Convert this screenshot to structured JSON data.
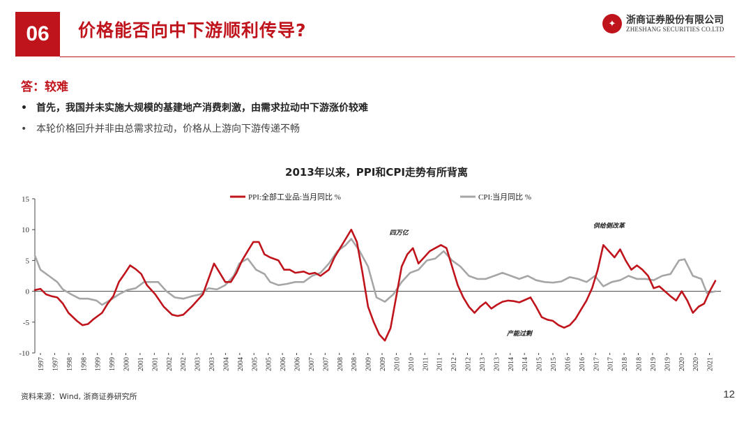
{
  "header": {
    "section_number": "06",
    "title": "价格能否向中下游顺利传导?",
    "logo_cn": "浙商证券股份有限公司",
    "logo_en": "ZHESHANG SECURITIES CO.LTD"
  },
  "body": {
    "answer": "答：较难",
    "bullets": [
      "首先，我国并未实施大规模的基建地产消费刺激，由需求拉动中下游涨价较难",
      "本轮价格回升并非由总需求拉动，价格从上游向下游传递不畅"
    ]
  },
  "footer": {
    "source": "资料来源：Wind, 浙商证券研究所",
    "page": "12"
  },
  "colors": {
    "brand_red": "#c0141c",
    "ppi_line": "#c0141c",
    "cpi_line": "#a6a6a6"
  },
  "chart_data": {
    "type": "line",
    "title": "2013年以来，PPI和CPI走势有所背离",
    "xlabel": "",
    "ylabel": "",
    "xlim": [
      1997.0,
      2021.5
    ],
    "ylim": [
      -10,
      15
    ],
    "y_ticks": [
      -10,
      -5,
      0,
      5,
      10,
      15
    ],
    "x_tick_labels": [
      "1997",
      "1997",
      "1998",
      "1998",
      "1999",
      "1999",
      "2000",
      "2001",
      "2001",
      "2002",
      "2002",
      "2003",
      "2003",
      "2004",
      "2004",
      "2005",
      "2005",
      "2006",
      "2006",
      "2007",
      "2007",
      "2008",
      "2008",
      "2009",
      "2009",
      "2010",
      "2010",
      "2011",
      "2011",
      "2012",
      "2012",
      "2013",
      "2013",
      "2014",
      "2014",
      "2015",
      "2015",
      "2016",
      "2016",
      "2017",
      "2017",
      "2018",
      "2018",
      "2019",
      "2019",
      "2020",
      "2020",
      "2021"
    ],
    "legend_position": "top",
    "grid": false,
    "annotations": [
      {
        "text": "四万亿",
        "x": 2010.0,
        "y": 9.2
      },
      {
        "text": "供给侧改革",
        "x": 2017.5,
        "y": 10.3
      },
      {
        "text": "产能过剩",
        "x": 2014.3,
        "y": -7.2
      }
    ],
    "series": [
      {
        "name": "PPI:全部工业品:当月同比 %",
        "x": [
          1997.0,
          1997.2,
          1997.4,
          1997.6,
          1997.8,
          1998.0,
          1998.2,
          1998.5,
          1998.7,
          1998.9,
          1999.1,
          1999.4,
          1999.6,
          1999.8,
          2000.0,
          2000.2,
          2000.4,
          2000.6,
          2000.8,
          2001.0,
          2001.3,
          2001.6,
          2001.9,
          2002.1,
          2002.3,
          2002.6,
          2002.8,
          2003.0,
          2003.2,
          2003.4,
          2003.6,
          2003.8,
          2004.0,
          2004.2,
          2004.4,
          2004.6,
          2004.8,
          2005.0,
          2005.2,
          2005.4,
          2005.7,
          2005.9,
          2006.1,
          2006.3,
          2006.6,
          2006.8,
          2007.0,
          2007.2,
          2007.5,
          2007.7,
          2007.9,
          2008.1,
          2008.3,
          2008.5,
          2008.7,
          2008.9,
          2009.1,
          2009.3,
          2009.5,
          2009.7,
          2009.9,
          2010.1,
          2010.3,
          2010.5,
          2010.7,
          2010.9,
          2011.1,
          2011.3,
          2011.5,
          2011.7,
          2011.9,
          2012.1,
          2012.3,
          2012.5,
          2012.7,
          2012.9,
          2013.1,
          2013.3,
          2013.5,
          2013.7,
          2013.9,
          2014.1,
          2014.3,
          2014.5,
          2014.7,
          2014.9,
          2015.1,
          2015.3,
          2015.5,
          2015.7,
          2015.9,
          2016.1,
          2016.3,
          2016.5,
          2016.7,
          2016.9,
          2017.1,
          2017.3,
          2017.5,
          2017.7,
          2017.9,
          2018.1,
          2018.3,
          2018.5,
          2018.7,
          2018.9,
          2019.1,
          2019.3,
          2019.5,
          2019.7,
          2019.9,
          2020.1,
          2020.3,
          2020.5,
          2020.7,
          2020.9,
          2021.1,
          2021.3
        ],
        "values": [
          0.2,
          0.4,
          -0.5,
          -0.8,
          -1.0,
          -2.0,
          -3.5,
          -4.8,
          -5.5,
          -5.3,
          -4.5,
          -3.5,
          -2.0,
          -0.8,
          1.5,
          2.8,
          4.2,
          3.6,
          2.8,
          1.0,
          -0.5,
          -2.5,
          -3.8,
          -4.0,
          -3.8,
          -2.5,
          -1.5,
          -0.5,
          2.0,
          4.5,
          3.0,
          1.5,
          1.5,
          3.0,
          5.0,
          6.5,
          8.0,
          8.0,
          6.0,
          5.5,
          5.0,
          3.5,
          3.5,
          3.0,
          3.2,
          2.8,
          3.0,
          2.5,
          3.5,
          5.5,
          7.0,
          8.5,
          10.0,
          8.0,
          3.0,
          -2.5,
          -5.0,
          -7.0,
          -8.0,
          -6.0,
          -1.0,
          4.0,
          6.0,
          7.0,
          4.5,
          5.5,
          6.5,
          7.0,
          7.5,
          7.0,
          4.0,
          1.0,
          -1.0,
          -2.5,
          -3.5,
          -2.5,
          -1.8,
          -2.8,
          -2.2,
          -1.7,
          -1.5,
          -1.6,
          -1.8,
          -1.4,
          -1.0,
          -2.5,
          -4.2,
          -4.6,
          -4.8,
          -5.5,
          -5.9,
          -5.5,
          -4.5,
          -3.0,
          -1.5,
          0.5,
          3.5,
          7.5,
          6.5,
          5.5,
          6.8,
          5.0,
          3.5,
          4.2,
          3.5,
          2.5,
          0.5,
          0.8,
          0.0,
          -0.8,
          -1.5,
          0.0,
          -1.5,
          -3.5,
          -2.5,
          -2.0,
          0.0,
          1.7
        ]
      },
      {
        "name": "CPI:当月同比 %",
        "x": [
          1997.0,
          1997.2,
          1997.5,
          1997.8,
          1998.0,
          1998.3,
          1998.6,
          1998.9,
          1999.2,
          1999.4,
          1999.7,
          2000.0,
          2000.3,
          2000.6,
          2000.9,
          2001.1,
          2001.4,
          2001.7,
          2002.0,
          2002.3,
          2002.6,
          2002.9,
          2003.2,
          2003.5,
          2003.8,
          2004.1,
          2004.3,
          2004.6,
          2004.9,
          2005.2,
          2005.4,
          2005.7,
          2006.0,
          2006.3,
          2006.6,
          2006.9,
          2007.2,
          2007.5,
          2007.8,
          2008.1,
          2008.3,
          2008.6,
          2008.9,
          2009.2,
          2009.5,
          2009.8,
          2010.1,
          2010.4,
          2010.7,
          2011.0,
          2011.3,
          2011.6,
          2011.9,
          2012.2,
          2012.5,
          2012.8,
          2013.1,
          2013.4,
          2013.7,
          2014.0,
          2014.3,
          2014.6,
          2014.9,
          2015.2,
          2015.5,
          2015.8,
          2016.1,
          2016.4,
          2016.7,
          2017.0,
          2017.3,
          2017.6,
          2017.9,
          2018.2,
          2018.5,
          2018.8,
          2019.1,
          2019.4,
          2019.7,
          2020.0,
          2020.2,
          2020.5,
          2020.8,
          2021.0,
          2021.3
        ],
        "values": [
          5.8,
          3.5,
          2.5,
          1.5,
          0.3,
          -0.5,
          -1.2,
          -1.2,
          -1.5,
          -2.2,
          -1.4,
          -0.5,
          0.2,
          0.5,
          1.5,
          1.5,
          1.5,
          0.0,
          -1.0,
          -1.2,
          -0.8,
          -0.5,
          0.5,
          0.3,
          1.0,
          2.5,
          4.5,
          5.3,
          3.5,
          2.8,
          1.5,
          1.0,
          1.2,
          1.5,
          1.5,
          2.5,
          3.0,
          4.5,
          6.5,
          7.5,
          8.5,
          6.5,
          4.0,
          -1.0,
          -1.7,
          -0.5,
          1.5,
          3.0,
          3.5,
          5.0,
          5.3,
          6.5,
          5.0,
          4.0,
          2.5,
          2.0,
          2.0,
          2.5,
          3.0,
          2.5,
          2.0,
          2.5,
          1.8,
          1.5,
          1.4,
          1.6,
          2.3,
          2.0,
          1.5,
          2.5,
          0.8,
          1.5,
          1.8,
          2.5,
          2.0,
          2.0,
          1.8,
          2.5,
          2.8,
          5.0,
          5.2,
          2.5,
          2.0,
          -0.3,
          0.0
        ]
      }
    ]
  }
}
